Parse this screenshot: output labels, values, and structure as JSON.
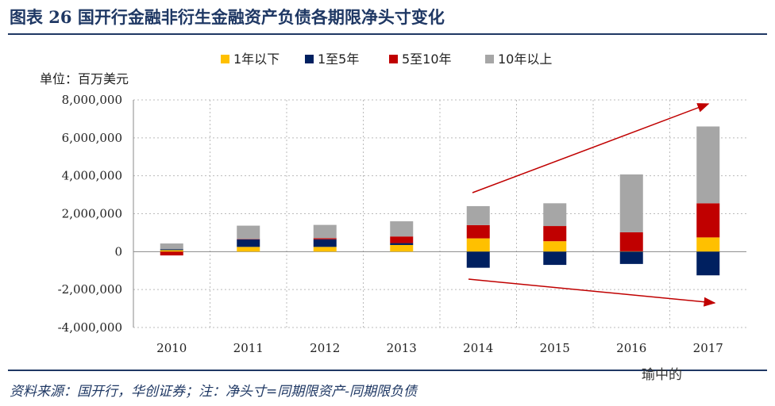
{
  "header": {
    "title": "图表 26 国开行金融非衍生金融资产负债各期限净头寸变化"
  },
  "footer": {
    "source": "资料来源：国开行，华创证券；注：净头寸=同期限资产-同期限负债",
    "watermark": "瑜中的"
  },
  "chart_data": {
    "type": "bar",
    "stacked": true,
    "title": "",
    "unit_label": "单位：百万美元",
    "categories": [
      "2010",
      "2011",
      "2012",
      "2013",
      "2014",
      "2015",
      "2016",
      "2017"
    ],
    "series": [
      {
        "name": "1年以下",
        "color": "#FFC000",
        "values": [
          80000,
          250000,
          250000,
          350000,
          700000,
          550000,
          20000,
          750000
        ]
      },
      {
        "name": "1至5年",
        "color": "#002060",
        "values": [
          50000,
          400000,
          400000,
          100000,
          -850000,
          -700000,
          -650000,
          -1250000
        ]
      },
      {
        "name": "5至10年",
        "color": "#C00000",
        "values": [
          -200000,
          20000,
          60000,
          350000,
          700000,
          800000,
          1000000,
          1800000
        ]
      },
      {
        "name": "10年以上",
        "color": "#A6A6A6",
        "values": [
          300000,
          700000,
          700000,
          800000,
          1000000,
          1200000,
          3050000,
          4050000
        ]
      }
    ],
    "ylim": [
      -4000000,
      8000000
    ],
    "yticks": [
      8000000,
      6000000,
      4000000,
      2000000,
      0,
      -2000000,
      -4000000
    ],
    "ytick_labels": [
      "8,000,000",
      "6,000,000",
      "4,000,000",
      "2,000,000",
      "0",
      "-2,000,000",
      "-4,000,000"
    ],
    "grid": true,
    "legend": "top",
    "annotations": [
      "upward trend arrow",
      "downward trend arrow"
    ]
  }
}
